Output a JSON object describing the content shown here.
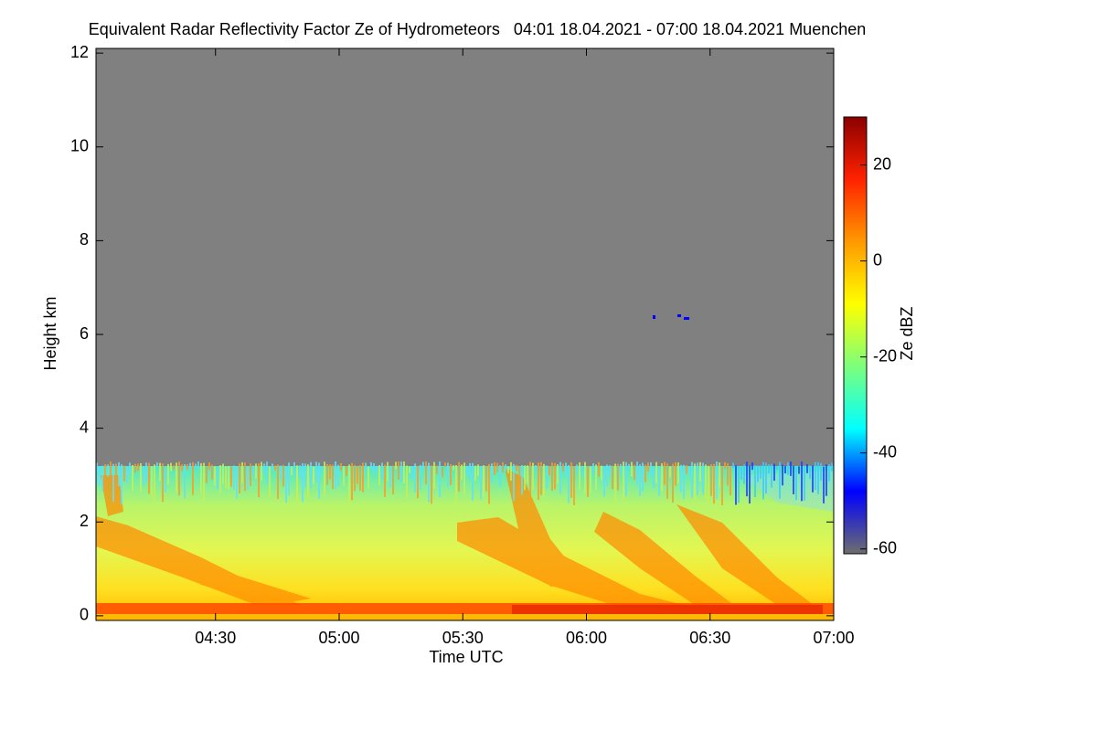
{
  "chart_data": {
    "type": "heatmap",
    "title": "Equivalent Radar Reflectivity Factor Ze of Hydrometeors   04:01 18.04.2021 - 07:00 18.04.2021 Muenchen",
    "x_label": "Time UTC",
    "y_label": "Height km",
    "colorbar_label": "Ze dBZ",
    "xlim": [
      241,
      420
    ],
    "xticks": [
      {
        "value": 270,
        "label": "04:30"
      },
      {
        "value": 300,
        "label": "05:00"
      },
      {
        "value": 330,
        "label": "05:30"
      },
      {
        "value": 360,
        "label": "06:00"
      },
      {
        "value": 390,
        "label": "06:30"
      },
      {
        "value": 420,
        "label": "07:00"
      }
    ],
    "ylim": [
      -0.1,
      12.1
    ],
    "yticks": [
      0,
      2,
      4,
      6,
      8,
      10,
      12
    ],
    "clim": [
      -61,
      30
    ],
    "cticks": [
      -60,
      -40,
      -20,
      0,
      20
    ],
    "colorscale": [
      "#6e6e6e",
      "#0000ff",
      "#00ffff",
      "#7cff7c",
      "#ffff00",
      "#ff9900",
      "#ff2200",
      "#8b0000"
    ]
  }
}
